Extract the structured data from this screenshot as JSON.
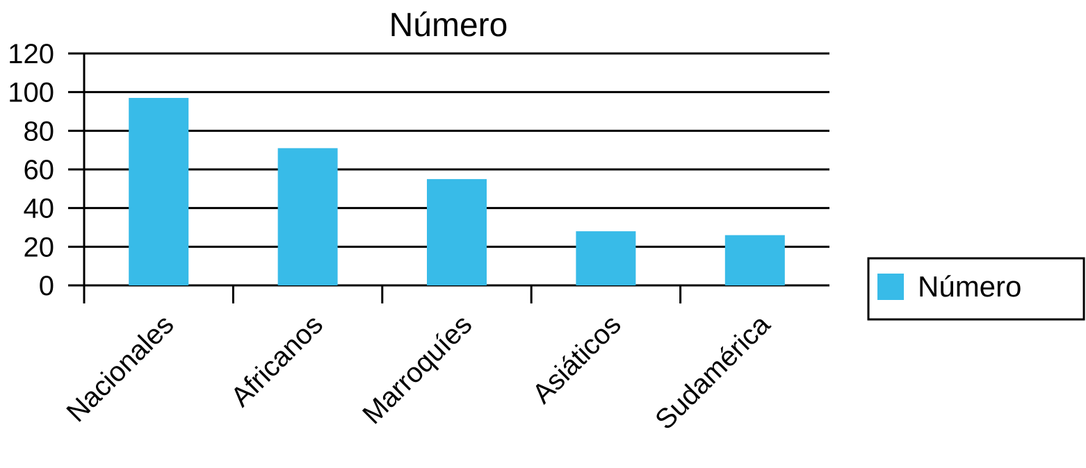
{
  "chart_data": {
    "type": "bar",
    "title": "Número",
    "xlabel": "",
    "ylabel": "",
    "categories": [
      "Nacionales",
      "Africanos",
      "Marroquíes",
      "Asiáticos",
      "Sudamérica"
    ],
    "series": [
      {
        "name": "Número",
        "values": [
          97,
          71,
          55,
          28,
          26
        ],
        "color": "#38BBE8"
      }
    ],
    "ylim": [
      0,
      120
    ],
    "yticks": [
      "0",
      "20",
      "40",
      "60",
      "80",
      "100",
      "120"
    ],
    "grid": true,
    "legend": "right"
  }
}
